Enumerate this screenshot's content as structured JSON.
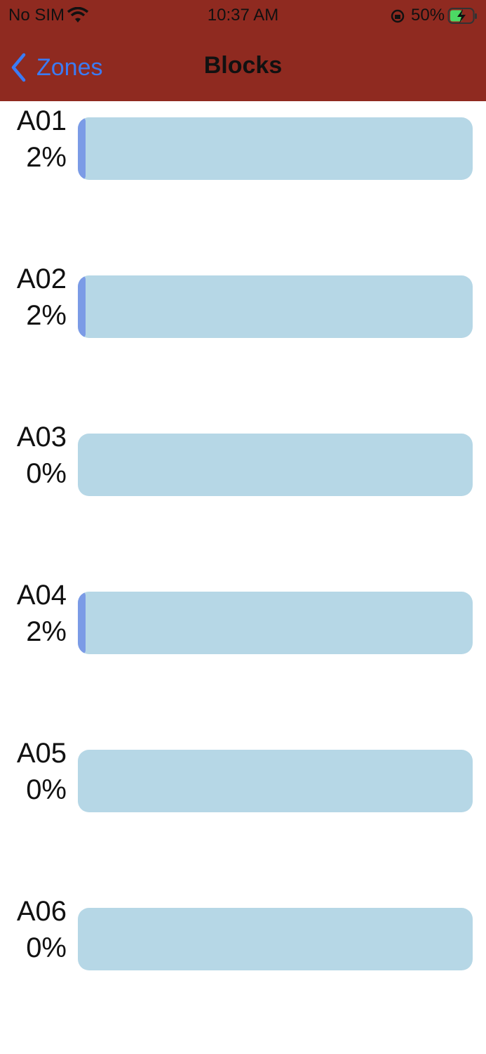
{
  "status_bar": {
    "carrier": "No SIM",
    "time": "10:37 AM",
    "battery": "50%"
  },
  "nav_bar": {
    "back": "Zones",
    "title": "Blocks"
  },
  "blocks": [
    {
      "name": "A01",
      "value": 2,
      "value_label": "2%"
    },
    {
      "name": "A02",
      "value": 2,
      "value_label": "2%"
    },
    {
      "name": "A03",
      "value": 0,
      "value_label": "0%"
    },
    {
      "name": "A04",
      "value": 2,
      "value_label": "2%"
    },
    {
      "name": "A05",
      "value": 0,
      "value_label": "0%"
    },
    {
      "name": "A06",
      "value": 0,
      "value_label": "0%"
    }
  ]
}
